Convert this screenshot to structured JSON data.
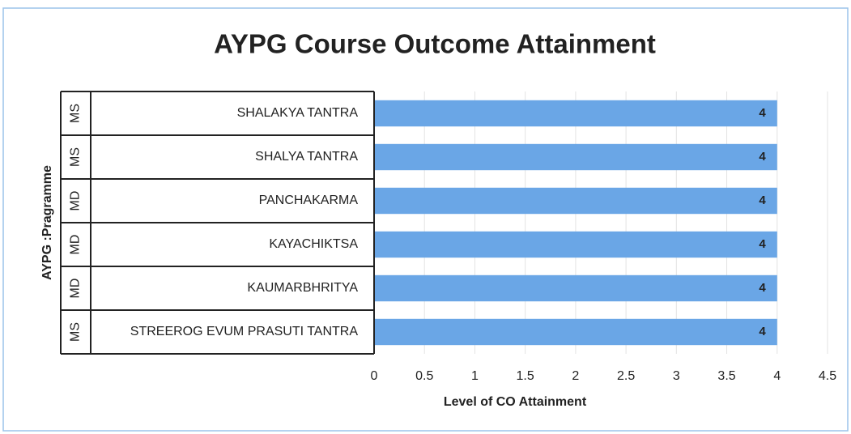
{
  "chart_data": {
    "type": "bar",
    "orientation": "horizontal",
    "title": "AYPG Course Outcome Attainment",
    "x_label": "Level of CO Attainment",
    "y_label": "AYPG :Pragramme",
    "categories": [
      "SHALAKYA TANTRA",
      "SHALYA TANTRA",
      "PANCHAKARMA",
      "KAYACHIKTSA",
      "KAUMARBHRITYA",
      "STREEROG EVUM PRASUTI TANTRA"
    ],
    "groups": [
      "MS",
      "MS",
      "MD",
      "MD",
      "MD",
      "MS"
    ],
    "values": [
      4,
      4,
      4,
      4,
      4,
      4
    ],
    "color": "#6aa6e6",
    "xlim": [
      0,
      4.5
    ],
    "xticks": [
      0,
      0.5,
      1,
      1.5,
      2,
      2.5,
      3,
      3.5,
      4,
      4.5
    ],
    "grid": true
  }
}
